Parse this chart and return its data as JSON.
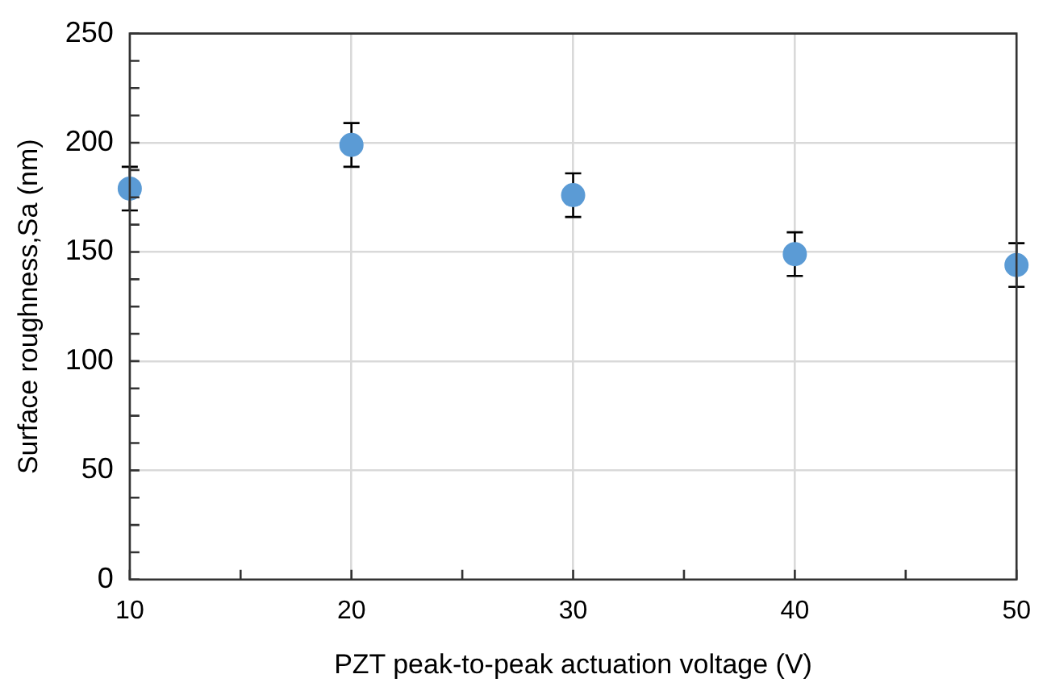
{
  "chart_data": {
    "type": "scatter",
    "xlabel": "PZT peak-to-peak actuation voltage (V)",
    "ylabel": "Surface roughness,Sa (nm)",
    "x": [
      10,
      20,
      30,
      40,
      50
    ],
    "series": [
      {
        "color": "#5b9bd5",
        "values": [
          179,
          199,
          176,
          149,
          144
        ],
        "errors": [
          10,
          10,
          10,
          10,
          10
        ]
      }
    ],
    "xlim": [
      10,
      50
    ],
    "xticks": [
      10,
      {
        "value": 15,
        "label": null
      },
      20,
      {
        "value": 25,
        "label": null
      },
      30,
      {
        "value": 35,
        "label": null
      },
      40,
      {
        "value": 45,
        "label": null
      },
      50
    ],
    "ylim": [
      0,
      250
    ],
    "yticks": [
      0,
      {
        "value": 12.5,
        "label": null
      },
      {
        "value": 25,
        "label": null
      },
      {
        "value": 37.5,
        "label": null
      },
      50,
      {
        "value": 62.5,
        "label": null
      },
      {
        "value": 75,
        "label": null
      },
      {
        "value": 87.5,
        "label": null
      },
      100,
      {
        "value": 112.5,
        "label": null
      },
      {
        "value": 125,
        "label": null
      },
      {
        "value": 137.5,
        "label": null
      },
      150,
      {
        "value": 162.5,
        "label": null
      },
      {
        "value": 175,
        "label": null
      },
      {
        "value": 187.5,
        "label": null
      },
      200,
      {
        "value": 212.5,
        "label": null
      },
      {
        "value": 225,
        "label": null
      },
      {
        "value": 237.5,
        "label": null
      },
      250
    ],
    "grid": true,
    "marker": "circle",
    "legend": false
  }
}
